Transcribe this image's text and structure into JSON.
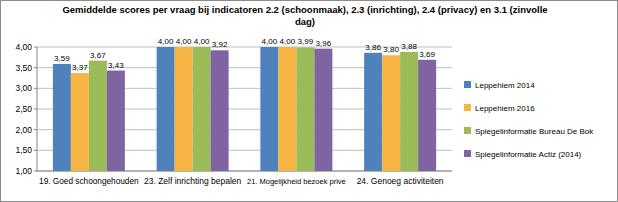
{
  "chart_data": {
    "type": "bar",
    "title": "Gemiddelde scores per vraag bij indicatoren 2.2 (schoonmaak), 2.3 (inrichting), 2.4 (privacy) en 3.1 (zinvolle dag)",
    "categories": [
      "19. Goed schoongehouden",
      "23. Zelf inrichting bepalen",
      "21. Mogelijkheid bezoek privé",
      "24. Genoeg activiteiten"
    ],
    "series": [
      {
        "name": "Leppehiem 2014",
        "color": "#4f81bd",
        "values": [
          3.59,
          4.0,
          4.0,
          3.86
        ],
        "value_labels": [
          "3,59",
          "4,00",
          "4,00",
          "3,86"
        ]
      },
      {
        "name": "Leppehiem 2016",
        "color": "#f7b543",
        "values": [
          3.37,
          4.0,
          4.0,
          3.8
        ],
        "value_labels": [
          "3,37",
          "4,00",
          "4,00",
          "3,80"
        ]
      },
      {
        "name": "Spiegelinformatie Bureau De Bok",
        "color": "#9bbb59",
        "values": [
          3.67,
          4.0,
          3.99,
          3.88
        ],
        "value_labels": [
          "3,67",
          "4,00",
          "3,99",
          "3,88"
        ]
      },
      {
        "name": "Spiegelinformatie Actiz (2014)",
        "color": "#8064a2",
        "values": [
          3.43,
          3.92,
          3.96,
          3.69
        ],
        "value_labels": [
          "3,43",
          "3,92",
          "3,96",
          "3,69"
        ]
      }
    ],
    "ylim": [
      1,
      4
    ],
    "yticks": [
      {
        "value": 1,
        "label": "1,00"
      },
      {
        "value": 1.5,
        "label": "1,50"
      },
      {
        "value": 2,
        "label": "2,00"
      },
      {
        "value": 2.5,
        "label": "2,50"
      },
      {
        "value": 3,
        "label": "3,00"
      },
      {
        "value": 3.5,
        "label": "3,50"
      },
      {
        "value": 4,
        "label": "4,00"
      }
    ],
    "grid": true,
    "legend": "right",
    "data_labels": true
  }
}
